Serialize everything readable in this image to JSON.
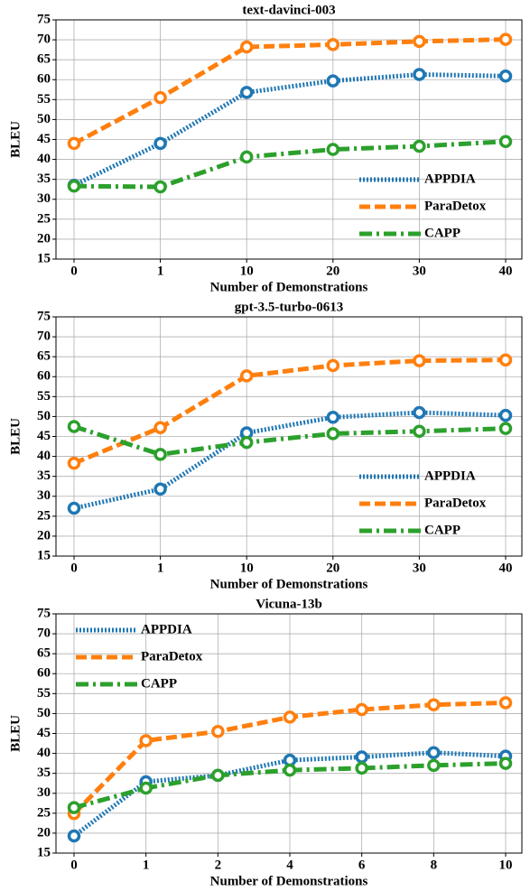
{
  "chart_data": [
    {
      "type": "line",
      "title": "text-davinci-003",
      "x_label": "Number of Demonstrations",
      "y_label": "BLEU",
      "categories": [
        "0",
        "1",
        "10",
        "20",
        "30",
        "40"
      ],
      "series": [
        {
          "name": "APPDIA",
          "color": "#1f77b4",
          "linestyle": "dotted",
          "values": [
            33.5,
            44,
            56.8,
            59.7,
            61.3,
            60.9
          ]
        },
        {
          "name": "ParaDetox",
          "color": "#ff7f0e",
          "linestyle": "dashed",
          "values": [
            44,
            55.5,
            68.2,
            68.8,
            69.6,
            70.1
          ]
        },
        {
          "name": "CAPP",
          "color": "#2ca02c",
          "linestyle": "dashdot",
          "values": [
            33.3,
            33.1,
            40.6,
            42.5,
            43.3,
            44.5
          ]
        }
      ],
      "ylim": [
        15,
        75
      ],
      "yticks": [
        15,
        20,
        25,
        30,
        35,
        40,
        45,
        50,
        55,
        60,
        65,
        70,
        75
      ],
      "grid": true,
      "legend": "lower right"
    },
    {
      "type": "line",
      "title": "gpt-3.5-turbo-0613",
      "x_label": "Number of Demonstrations",
      "y_label": "BLEU",
      "categories": [
        "0",
        "1",
        "10",
        "20",
        "30",
        "40"
      ],
      "series": [
        {
          "name": "APPDIA",
          "color": "#1f77b4",
          "linestyle": "dotted",
          "values": [
            27,
            31.8,
            45.9,
            49.8,
            51,
            50.3
          ]
        },
        {
          "name": "ParaDetox",
          "color": "#ff7f0e",
          "linestyle": "dashed",
          "values": [
            38.3,
            47.2,
            60.2,
            62.8,
            64,
            64.2
          ]
        },
        {
          "name": "CAPP",
          "color": "#2ca02c",
          "linestyle": "dashdot",
          "values": [
            47.5,
            40.5,
            43.5,
            45.7,
            46.3,
            47
          ]
        }
      ],
      "ylim": [
        15,
        75
      ],
      "yticks": [
        15,
        20,
        25,
        30,
        35,
        40,
        45,
        50,
        55,
        60,
        65,
        70,
        75
      ],
      "grid": true,
      "legend": "lower right"
    },
    {
      "type": "line",
      "title": "Vicuna-13b",
      "x_label": "Number of Demonstrations",
      "y_label": "BLEU",
      "categories": [
        "0",
        "1",
        "2",
        "4",
        "6",
        "8",
        "10"
      ],
      "series": [
        {
          "name": "APPDIA",
          "color": "#1f77b4",
          "linestyle": "dotted",
          "values": [
            19.3,
            32.9,
            34.5,
            38.3,
            39.1,
            40.2,
            39.3
          ]
        },
        {
          "name": "ParaDetox",
          "color": "#ff7f0e",
          "linestyle": "dashed",
          "values": [
            24.9,
            43.2,
            45.5,
            49.1,
            51,
            52.2,
            52.7
          ]
        },
        {
          "name": "CAPP",
          "color": "#2ca02c",
          "linestyle": "dashdot",
          "values": [
            26.4,
            31.3,
            34.5,
            35.8,
            36.3,
            37,
            37.5
          ]
        }
      ],
      "ylim": [
        15,
        75
      ],
      "yticks": [
        15,
        20,
        25,
        30,
        35,
        40,
        45,
        50,
        55,
        60,
        65,
        70,
        75
      ],
      "grid": true,
      "legend": "upper left"
    }
  ]
}
